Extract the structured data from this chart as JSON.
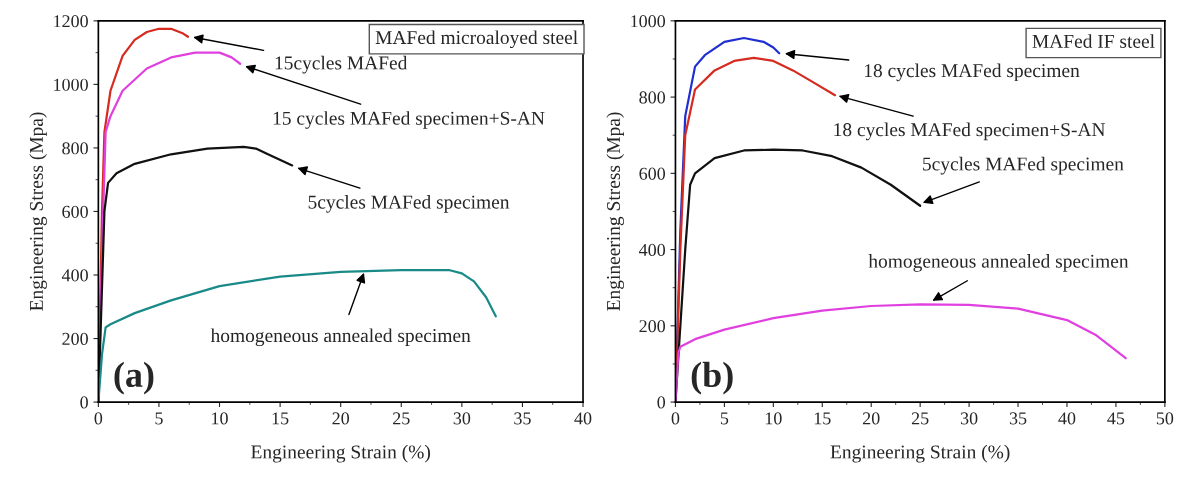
{
  "chart_data": [
    {
      "type": "line",
      "xlabel": "Engineering Strain (%)",
      "ylabel": "Engineering Stress (Mpa)",
      "xlim": [
        0,
        40
      ],
      "xticks": [
        0,
        5,
        10,
        15,
        20,
        25,
        30,
        35,
        40
      ],
      "ylim": [
        0,
        1200
      ],
      "yticks": [
        0,
        200,
        400,
        600,
        800,
        1000,
        1200
      ],
      "grid": false,
      "legend": false,
      "line_style": "solid",
      "marker": "none",
      "series": [
        {
          "color": "#d62b20",
          "x": [
            0,
            0.3,
            0.5,
            1,
            2,
            3,
            4,
            5,
            6,
            7,
            7.4
          ],
          "values": [
            0,
            600,
            850,
            980,
            1090,
            1140,
            1165,
            1175,
            1175,
            1160,
            1150
          ]
        },
        {
          "color": "#e040e0",
          "x": [
            0,
            0.4,
            0.6,
            1,
            2,
            4,
            6,
            8,
            10,
            11,
            11.7
          ],
          "values": [
            0,
            600,
            850,
            900,
            980,
            1050,
            1085,
            1100,
            1100,
            1085,
            1065
          ]
        },
        {
          "color": "#111111",
          "x": [
            0,
            0.5,
            0.8,
            1.5,
            3,
            6,
            9,
            12,
            13,
            14,
            16
          ],
          "values": [
            0,
            600,
            690,
            720,
            750,
            780,
            798,
            803,
            798,
            780,
            745
          ]
        },
        {
          "color": "#1a8a88",
          "x": [
            0,
            0.3,
            0.6,
            1,
            3,
            6,
            10,
            15,
            20,
            25,
            29,
            30,
            31,
            32,
            32.8
          ],
          "values": [
            0,
            150,
            235,
            245,
            280,
            320,
            365,
            395,
            410,
            415,
            415,
            405,
            380,
            330,
            270
          ]
        }
      ],
      "annotations": [
        "MAFed microaloyed steel",
        "(a)",
        {
          "text": "15cycles MAFed",
          "x": 7.6,
          "y": 1150
        },
        {
          "text": "15 cycles MAFed specimen+S-AN",
          "x": 11.9,
          "y": 1060
        },
        {
          "text": "5cycles MAFed specimen",
          "x": 16.2,
          "y": 740
        },
        {
          "text": "homogeneous annealed specimen",
          "x": 22,
          "y": 415
        }
      ]
    },
    {
      "type": "line",
      "xlabel": "Engineering Strain (%)",
      "ylabel": "Engineering Stress (Mpa)",
      "xlim": [
        0,
        50
      ],
      "xticks": [
        0,
        5,
        10,
        15,
        20,
        25,
        30,
        35,
        40,
        45,
        50
      ],
      "ylim": [
        0,
        1000
      ],
      "yticks": [
        0,
        200,
        400,
        600,
        800,
        1000
      ],
      "grid": false,
      "legend": false,
      "line_style": "solid",
      "marker": "none",
      "series": [
        {
          "color": "#2030d0",
          "x": [
            0,
            0.5,
            1,
            2,
            3,
            5,
            7,
            9,
            10,
            10.6
          ],
          "values": [
            0,
            450,
            750,
            880,
            910,
            945,
            955,
            945,
            930,
            915
          ]
        },
        {
          "color": "#d62b20",
          "x": [
            0,
            0.5,
            1,
            2,
            4,
            6,
            8,
            10,
            12,
            14,
            16.3
          ],
          "values": [
            0,
            400,
            700,
            820,
            870,
            895,
            903,
            895,
            870,
            840,
            805
          ]
        },
        {
          "color": "#111111",
          "x": [
            0,
            1,
            1.5,
            2,
            4,
            7,
            10,
            13,
            16,
            19,
            22,
            25
          ],
          "values": [
            0,
            400,
            570,
            600,
            640,
            660,
            662,
            660,
            645,
            615,
            570,
            515
          ]
        },
        {
          "color": "#e040e0",
          "x": [
            0,
            0.3,
            0.5,
            2,
            5,
            10,
            15,
            20,
            25,
            30,
            35,
            40,
            43,
            46
          ],
          "values": [
            0,
            130,
            145,
            165,
            190,
            220,
            240,
            252,
            256,
            255,
            245,
            215,
            175,
            115
          ]
        }
      ],
      "annotations": [
        "MAFed IF steel",
        "(b)",
        {
          "text": "18 cycles MAFed specimen",
          "x": 10.9,
          "y": 915
        },
        {
          "text": "18 cycles MAFed specimen+S-AN",
          "x": 16.4,
          "y": 805
        },
        {
          "text": "5cycles MAFed specimen",
          "x": 25,
          "y": 520
        },
        {
          "text": "homogeneous annealed specimen",
          "x": 26,
          "y": 262
        }
      ]
    }
  ]
}
